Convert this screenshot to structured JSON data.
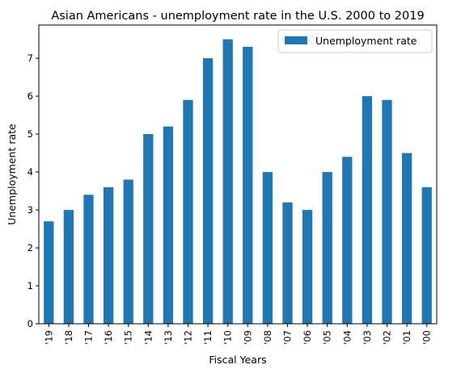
{
  "chart_data": {
    "type": "bar",
    "title": "Asian Americans - unemployment rate in the U.S. 2000 to 2019",
    "xlabel": "Fiscal Years",
    "ylabel": "Unemployment rate",
    "categories": [
      "'19",
      "'18",
      "'17",
      "'16",
      "'15",
      "'14",
      "'13",
      "'12",
      "'11",
      "'10",
      "'09",
      "'08",
      "'07",
      "'06",
      "'05",
      "'04",
      "'03",
      "'02",
      "'01",
      "'00"
    ],
    "series": [
      {
        "name": "Unemployment rate",
        "color": "#1f77b4",
        "values": [
          2.7,
          3.0,
          3.4,
          3.6,
          3.8,
          5.0,
          5.2,
          5.9,
          7.0,
          7.5,
          7.3,
          4.0,
          3.2,
          3.0,
          4.0,
          4.4,
          6.0,
          5.9,
          4.5,
          3.6
        ]
      }
    ],
    "ylim": [
      0,
      7.875
    ],
    "yticks": [
      0,
      1,
      2,
      3,
      4,
      5,
      6,
      7
    ],
    "legend": "top-right",
    "grid": false
  }
}
